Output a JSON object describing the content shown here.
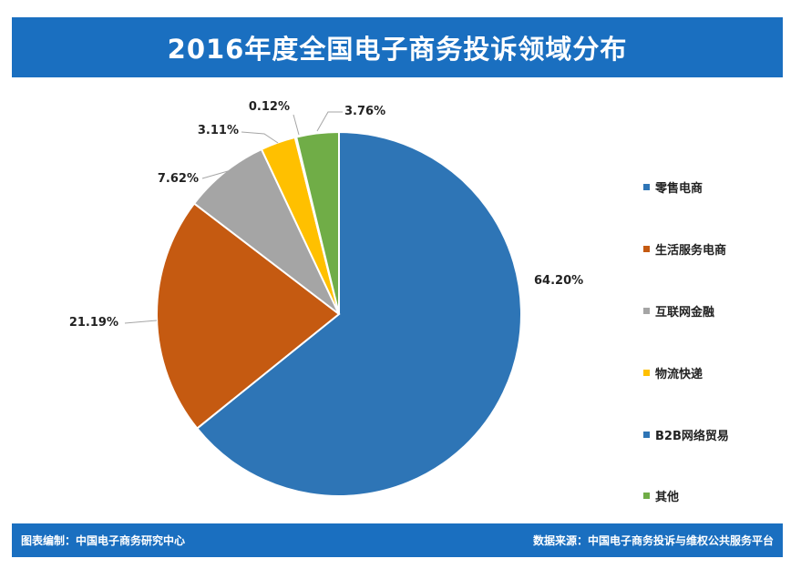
{
  "title": "2016年度全国电子商务投诉领域分布",
  "footer": {
    "left": "图表编制：中国电子商务研究中心",
    "right": "数据来源：中国电子商务投诉与维权公共服务平台"
  },
  "colors": {
    "banner": "#1a6fc0",
    "零售电商": "#2e75b6",
    "生活服务电商": "#c55a11",
    "互联网金融": "#a5a5a5",
    "物流快递": "#ffc000",
    "B2B网络贸易": "#2e75b6",
    "其他": "#70ad47"
  },
  "chart_data": {
    "type": "pie",
    "title": "2016年度全国电子商务投诉领域分布",
    "slices": [
      {
        "label": "零售电商",
        "value": 64.2,
        "display": "64.20%",
        "color": "#2e75b6"
      },
      {
        "label": "生活服务电商",
        "value": 21.19,
        "display": "21.19%",
        "color": "#c55a11"
      },
      {
        "label": "互联网金融",
        "value": 7.62,
        "display": "7.62%",
        "color": "#a5a5a5"
      },
      {
        "label": "物流快递",
        "value": 3.11,
        "display": "3.11%",
        "color": "#ffc000"
      },
      {
        "label": "B2B网络贸易",
        "value": 0.12,
        "display": "0.12%",
        "color": "#2e75b6"
      },
      {
        "label": "其他",
        "value": 3.76,
        "display": "3.76%",
        "color": "#70ad47"
      }
    ],
    "legend_position": "right"
  }
}
